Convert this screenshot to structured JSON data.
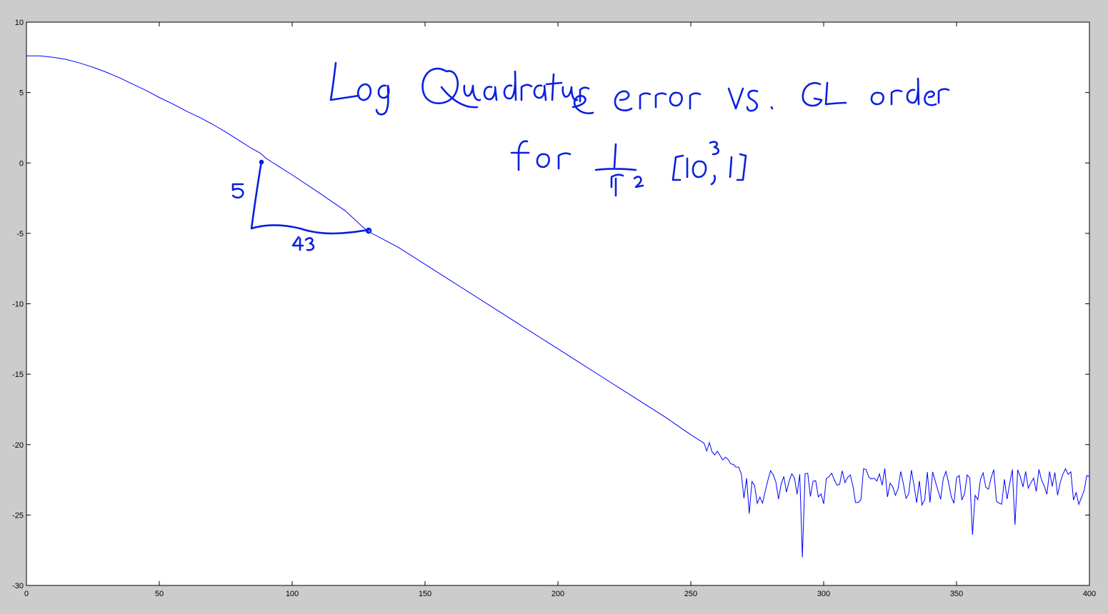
{
  "figure": {
    "background_color": "#cccccc",
    "axes_color": "#ffffff",
    "line_color": "#0000ff",
    "ink_color": "#0a1fe0"
  },
  "annotation": {
    "title_line1": "Log Quadrature error vs. GL order",
    "title_line2": "for 1/r^2 [10^-3, 1]",
    "slope_rise": "5",
    "slope_run": "43"
  },
  "chart_data": {
    "type": "line",
    "title": "",
    "xlabel": "",
    "ylabel": "",
    "xlim": [
      0,
      400
    ],
    "ylim": [
      -30,
      10
    ],
    "xticks": [
      0,
      50,
      100,
      150,
      200,
      250,
      300,
      350,
      400
    ],
    "yticks": [
      10,
      5,
      0,
      -5,
      -10,
      -15,
      -20,
      -25,
      -30
    ],
    "grid": false,
    "series": [
      {
        "smooth_segment_points": [
          [
            0,
            7.6
          ],
          [
            5,
            7.6
          ],
          [
            10,
            7.5
          ],
          [
            15,
            7.35
          ],
          [
            20,
            7.1
          ],
          [
            25,
            6.8
          ],
          [
            30,
            6.45
          ],
          [
            35,
            6.05
          ],
          [
            40,
            5.6
          ],
          [
            45,
            5.15
          ],
          [
            50,
            4.65
          ],
          [
            55,
            4.2
          ],
          [
            60,
            3.7
          ],
          [
            65,
            3.25
          ],
          [
            70,
            2.75
          ],
          [
            75,
            2.2
          ],
          [
            80,
            1.6
          ],
          [
            85,
            1.0
          ],
          [
            88,
            0.7
          ],
          [
            90,
            0.35
          ],
          [
            95,
            -0.25
          ],
          [
            100,
            -0.85
          ],
          [
            110,
            -2.1
          ],
          [
            120,
            -3.4
          ],
          [
            128,
            -4.8
          ],
          [
            140,
            -6.0
          ],
          [
            160,
            -8.4
          ],
          [
            180,
            -10.8
          ],
          [
            200,
            -13.2
          ],
          [
            220,
            -15.6
          ],
          [
            240,
            -18.0
          ],
          [
            250,
            -19.3
          ],
          [
            255,
            -19.9
          ]
        ],
        "noise_floor_range": [
          -28.0,
          -21.5
        ],
        "noise_floor_start_x": 255,
        "noise_floor_mean": -22.8,
        "notable_minima": [
          [
            272,
            -24.9
          ],
          [
            292,
            -28.0
          ],
          [
            356,
            -26.4
          ],
          [
            372,
            -25.7
          ]
        ]
      }
    ]
  }
}
